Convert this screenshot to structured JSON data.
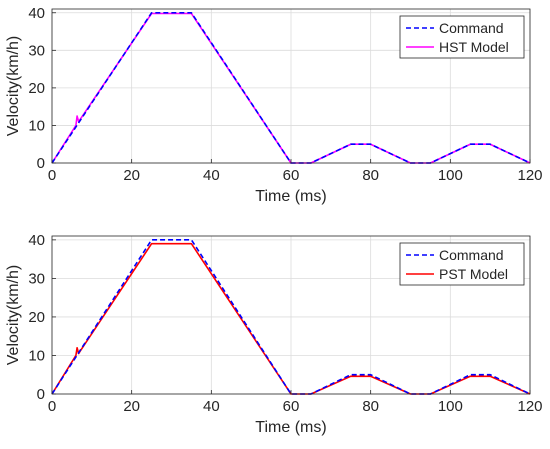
{
  "chart_data": [
    {
      "type": "line",
      "xlabel": "Time (ms)",
      "ylabel": "Velocity(km/h)",
      "xlim": [
        0,
        120
      ],
      "ylim": [
        0,
        41
      ],
      "xticks": [
        0,
        20,
        40,
        60,
        80,
        100,
        120
      ],
      "yticks": [
        0,
        10,
        20,
        30,
        40
      ],
      "xtick_labels": [
        "0",
        "20",
        "40",
        "60",
        "80",
        "100",
        "120"
      ],
      "ytick_labels": [
        "0",
        "10",
        "20",
        "30",
        "40"
      ],
      "grid": true,
      "legend_position": "top-right",
      "series": [
        {
          "name": "Command",
          "color": "#0000ff",
          "style": "dashed",
          "x": [
            0,
            25,
            35,
            60,
            65,
            75,
            80,
            90,
            95,
            105,
            110,
            120
          ],
          "y": [
            0,
            40,
            40,
            0,
            0,
            5,
            5,
            0,
            0,
            5,
            5,
            0
          ]
        },
        {
          "name": "HST Model",
          "color": "#ff00ff",
          "style": "solid",
          "x": [
            0,
            6,
            6.3,
            6.7,
            7,
            25,
            35,
            60,
            65,
            75,
            80,
            90,
            95,
            105,
            110,
            120
          ],
          "y": [
            0,
            10,
            12.5,
            11,
            11.5,
            39.8,
            39.8,
            0,
            0,
            5,
            5,
            0,
            0,
            5,
            5,
            0
          ]
        }
      ]
    },
    {
      "type": "line",
      "xlabel": "Time (ms)",
      "ylabel": "Velocity(km/h)",
      "xlim": [
        0,
        120
      ],
      "ylim": [
        0,
        41
      ],
      "xticks": [
        0,
        20,
        40,
        60,
        80,
        100,
        120
      ],
      "yticks": [
        0,
        10,
        20,
        30,
        40
      ],
      "xtick_labels": [
        "0",
        "20",
        "40",
        "60",
        "80",
        "100",
        "120"
      ],
      "ytick_labels": [
        "0",
        "10",
        "20",
        "30",
        "40"
      ],
      "grid": true,
      "legend_position": "top-right",
      "series": [
        {
          "name": "Command",
          "color": "#0000ff",
          "style": "dashed",
          "x": [
            0,
            25,
            35,
            60,
            65,
            75,
            80,
            90,
            95,
            105,
            110,
            120
          ],
          "y": [
            0,
            40,
            40,
            0,
            0,
            5,
            5,
            0,
            0,
            5,
            5,
            0
          ]
        },
        {
          "name": "PST Model",
          "color": "#ff0000",
          "style": "solid",
          "x": [
            0,
            6,
            6.3,
            6.7,
            7,
            25,
            35,
            60,
            65,
            75,
            80,
            90,
            95,
            105,
            110,
            120
          ],
          "y": [
            0,
            10,
            12,
            10.5,
            11,
            39,
            39,
            0,
            0,
            4.6,
            4.6,
            0,
            0,
            4.6,
            4.6,
            0
          ]
        }
      ]
    }
  ]
}
